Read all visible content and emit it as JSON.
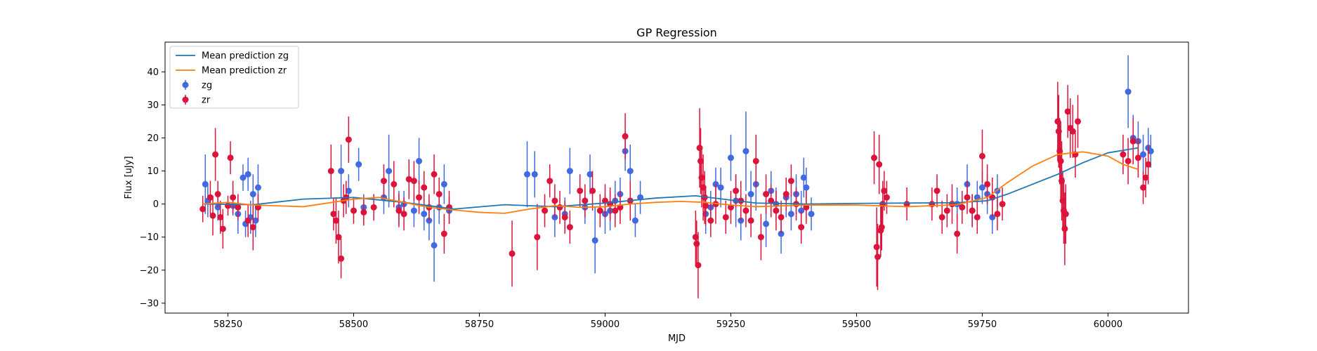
{
  "chart_data": {
    "type": "scatter",
    "title": "GP Regression",
    "xlabel": "MJD",
    "ylabel": "Flux [uJy]",
    "xlim": [
      58125,
      60160
    ],
    "ylim": [
      -33,
      49
    ],
    "xticks": [
      58250,
      58500,
      58750,
      59000,
      59250,
      59500,
      59750,
      60000
    ],
    "yticks": [
      -30,
      -20,
      -10,
      0,
      10,
      20,
      30,
      40
    ],
    "grid": false,
    "legend_position": "top-left",
    "colors": {
      "zg": "#4169e1",
      "zr": "#dc143c",
      "mean_zg": "#1f77b4",
      "mean_zr": "#ff7f0e"
    },
    "series": [
      {
        "name": "Mean prediction zg",
        "kind": "line",
        "x": [
          58200,
          58300,
          58400,
          58500,
          58600,
          58700,
          58800,
          58900,
          59000,
          59100,
          59180,
          59250,
          59300,
          59400,
          59500,
          59600,
          59700,
          59760,
          59800,
          59850,
          59900,
          59950,
          60000,
          60060
        ],
        "y": [
          0.0,
          -0.2,
          1.5,
          2.0,
          0.5,
          -1.5,
          -0.2,
          -0.8,
          0.3,
          1.8,
          2.5,
          1.2,
          0.3,
          0.0,
          0.2,
          0.3,
          0.4,
          1.0,
          3.0,
          6.0,
          9.0,
          12.5,
          15.5,
          17.0
        ]
      },
      {
        "name": "Mean prediction zr",
        "kind": "line",
        "x": [
          58200,
          58250,
          58300,
          58400,
          58500,
          58550,
          58600,
          58650,
          58700,
          58750,
          58800,
          58850,
          58900,
          58950,
          59000,
          59050,
          59100,
          59150,
          59200,
          59250,
          59300,
          59400,
          59500,
          59600,
          59700,
          59760,
          59800,
          59850,
          59900,
          59950,
          60000,
          60030,
          60060
        ],
        "y": [
          0.0,
          0.5,
          -0.3,
          -0.8,
          1.5,
          2.0,
          0.5,
          -1.0,
          -1.8,
          -2.5,
          -2.8,
          -1.5,
          -0.5,
          -1.0,
          -0.8,
          0.0,
          0.5,
          0.8,
          0.5,
          -0.3,
          -0.8,
          -0.3,
          -0.3,
          -0.8,
          -0.2,
          2.0,
          6.5,
          11.5,
          15.0,
          15.8,
          14.5,
          12.0,
          10.5
        ]
      },
      {
        "name": "zg",
        "kind": "errorbar",
        "points": [
          [
            58205,
            6,
            9
          ],
          [
            58210,
            1,
            5
          ],
          [
            58230,
            -1,
            4
          ],
          [
            58260,
            -0.5,
            3
          ],
          [
            58270,
            -3,
            6
          ],
          [
            58280,
            8,
            4
          ],
          [
            58285,
            -6,
            4
          ],
          [
            58290,
            9,
            5
          ],
          [
            58295,
            -4,
            5
          ],
          [
            58300,
            3,
            6
          ],
          [
            58305,
            -5,
            5
          ],
          [
            58310,
            5,
            7
          ],
          [
            58475,
            10,
            8
          ],
          [
            58490,
            4,
            5
          ],
          [
            58510,
            12,
            5
          ],
          [
            58520,
            -1,
            4
          ],
          [
            58560,
            2,
            5
          ],
          [
            58570,
            10,
            11
          ],
          [
            58590,
            -1,
            5
          ],
          [
            58600,
            0,
            4
          ],
          [
            58620,
            -2,
            5
          ],
          [
            58630,
            13,
            7
          ],
          [
            58640,
            -3,
            5
          ],
          [
            58650,
            -5,
            6
          ],
          [
            58660,
            -12.5,
            11
          ],
          [
            58670,
            -1,
            5
          ],
          [
            58680,
            6,
            6
          ],
          [
            58690,
            -2,
            4
          ],
          [
            58845,
            9,
            10
          ],
          [
            58860,
            9,
            7
          ],
          [
            58900,
            -4,
            6
          ],
          [
            58920,
            -3,
            5
          ],
          [
            58930,
            10,
            7
          ],
          [
            58960,
            -1,
            5
          ],
          [
            58970,
            9,
            6
          ],
          [
            58980,
            -11,
            10
          ],
          [
            59000,
            -3,
            6
          ],
          [
            59010,
            -2,
            6
          ],
          [
            59020,
            1,
            6
          ],
          [
            59030,
            3,
            5
          ],
          [
            59040,
            16,
            6
          ],
          [
            59050,
            10,
            8
          ],
          [
            59060,
            -5,
            5
          ],
          [
            59070,
            2,
            5
          ],
          [
            59200,
            -3,
            6
          ],
          [
            59210,
            -1,
            5
          ],
          [
            59220,
            6,
            5
          ],
          [
            59230,
            5,
            6
          ],
          [
            59250,
            14,
            7
          ],
          [
            59260,
            1,
            8
          ],
          [
            59270,
            -5,
            6
          ],
          [
            59280,
            16,
            12
          ],
          [
            59290,
            3,
            7
          ],
          [
            59300,
            6,
            8
          ],
          [
            59320,
            -6,
            7
          ],
          [
            59330,
            4,
            6
          ],
          [
            59340,
            0,
            5
          ],
          [
            59350,
            -9,
            6
          ],
          [
            59360,
            2,
            6
          ],
          [
            59370,
            -3,
            5
          ],
          [
            59380,
            3,
            6
          ],
          [
            59390,
            -2,
            6
          ],
          [
            59395,
            8,
            6
          ],
          [
            59400,
            5,
            6
          ],
          [
            59410,
            -3,
            5
          ],
          [
            59700,
            0,
            5
          ],
          [
            59720,
            6,
            6
          ],
          [
            59730,
            -2,
            5
          ],
          [
            59740,
            2,
            5
          ],
          [
            59750,
            5,
            5
          ],
          [
            59760,
            3,
            6
          ],
          [
            59770,
            -4,
            5
          ],
          [
            59780,
            4,
            5
          ],
          [
            60040,
            34,
            11
          ],
          [
            60050,
            20,
            7
          ],
          [
            60060,
            19,
            6
          ],
          [
            60070,
            15,
            6
          ],
          [
            60080,
            17,
            6
          ],
          [
            60085,
            16,
            5
          ]
        ]
      },
      {
        "name": "zr",
        "kind": "errorbar",
        "points": [
          [
            58200,
            -1.5,
            4
          ],
          [
            58215,
            2,
            5
          ],
          [
            58220,
            -3.5,
            6
          ],
          [
            58225,
            15,
            8
          ],
          [
            58230,
            3,
            4
          ],
          [
            58235,
            -4,
            5
          ],
          [
            58240,
            -7.5,
            6
          ],
          [
            58250,
            -0.5,
            3
          ],
          [
            58255,
            14,
            5
          ],
          [
            58260,
            2,
            5
          ],
          [
            58270,
            -1,
            4
          ],
          [
            58290,
            -5,
            5
          ],
          [
            58300,
            -7,
            7
          ],
          [
            58310,
            -1,
            4
          ],
          [
            58455,
            10,
            8
          ],
          [
            58460,
            -3,
            5
          ],
          [
            58465,
            -5,
            7
          ],
          [
            58470,
            -10,
            8
          ],
          [
            58475,
            -16.5,
            6
          ],
          [
            58480,
            1,
            5
          ],
          [
            58485,
            2,
            5
          ],
          [
            58490,
            19.5,
            7
          ],
          [
            58500,
            -2,
            4
          ],
          [
            58520,
            -2.5,
            4
          ],
          [
            58540,
            -1,
            4
          ],
          [
            58560,
            7,
            5
          ],
          [
            58580,
            6,
            7
          ],
          [
            58590,
            -2,
            5
          ],
          [
            58600,
            -3,
            5
          ],
          [
            58610,
            7.5,
            6
          ],
          [
            58620,
            7,
            6
          ],
          [
            58630,
            2,
            5
          ],
          [
            58640,
            5,
            5
          ],
          [
            58650,
            -1,
            4
          ],
          [
            58660,
            9,
            6
          ],
          [
            58670,
            3,
            5
          ],
          [
            58680,
            -9,
            6
          ],
          [
            58690,
            -1,
            5
          ],
          [
            58815,
            -15,
            10
          ],
          [
            58865,
            -10,
            10
          ],
          [
            58880,
            -2,
            5
          ],
          [
            58890,
            7,
            5
          ],
          [
            58900,
            1,
            5
          ],
          [
            58910,
            -1,
            5
          ],
          [
            58920,
            -4,
            5
          ],
          [
            58930,
            -7,
            5
          ],
          [
            58950,
            4,
            5
          ],
          [
            58960,
            1,
            5
          ],
          [
            58975,
            4,
            6
          ],
          [
            58990,
            -2,
            5
          ],
          [
            59000,
            1,
            5
          ],
          [
            59010,
            0,
            5
          ],
          [
            59020,
            -2,
            5
          ],
          [
            59030,
            -1,
            5
          ],
          [
            59040,
            20.5,
            7
          ],
          [
            59050,
            1,
            6
          ],
          [
            59180,
            -10,
            8
          ],
          [
            59182,
            -12,
            7
          ],
          [
            59185,
            -18.5,
            10
          ],
          [
            59188,
            17,
            12
          ],
          [
            59190,
            13,
            10
          ],
          [
            59192,
            8,
            9
          ],
          [
            59195,
            5,
            10
          ],
          [
            59198,
            2,
            8
          ],
          [
            59200,
            -0.5,
            6
          ],
          [
            59210,
            -5,
            5
          ],
          [
            59220,
            0,
            6
          ],
          [
            59240,
            -4,
            5
          ],
          [
            59250,
            -1,
            5
          ],
          [
            59260,
            4,
            5
          ],
          [
            59270,
            1,
            6
          ],
          [
            59280,
            -2,
            5
          ],
          [
            59290,
            -5,
            5
          ],
          [
            59300,
            13,
            8
          ],
          [
            59310,
            -10,
            7
          ],
          [
            59320,
            3,
            6
          ],
          [
            59330,
            1,
            5
          ],
          [
            59340,
            -2,
            6
          ],
          [
            59350,
            -4,
            5
          ],
          [
            59360,
            3,
            5
          ],
          [
            59370,
            7,
            5
          ],
          [
            59380,
            0,
            5
          ],
          [
            59390,
            -7,
            5
          ],
          [
            59400,
            -1,
            5
          ],
          [
            59535,
            14,
            8
          ],
          [
            59540,
            -13,
            12
          ],
          [
            59542,
            -16,
            10
          ],
          [
            59545,
            12,
            9
          ],
          [
            59548,
            -8,
            8
          ],
          [
            59550,
            -7,
            7
          ],
          [
            59552,
            0,
            7
          ],
          [
            59555,
            4,
            6
          ],
          [
            59560,
            2,
            5
          ],
          [
            59600,
            0,
            5
          ],
          [
            59650,
            0,
            5
          ],
          [
            59660,
            4,
            5
          ],
          [
            59670,
            -4,
            5
          ],
          [
            59680,
            -2,
            5
          ],
          [
            59690,
            0,
            6
          ],
          [
            59700,
            -9,
            6
          ],
          [
            59710,
            -1,
            5
          ],
          [
            59720,
            2,
            5
          ],
          [
            59730,
            -2,
            5
          ],
          [
            59740,
            -4,
            5
          ],
          [
            59750,
            14.5,
            8
          ],
          [
            59760,
            6,
            6
          ],
          [
            59770,
            2,
            6
          ],
          [
            59780,
            -3,
            5
          ],
          [
            59790,
            0,
            5
          ],
          [
            59900,
            25,
            12
          ],
          [
            59902,
            22,
            11
          ],
          [
            59904,
            16,
            10
          ],
          [
            59906,
            13,
            12
          ],
          [
            59908,
            7,
            12
          ],
          [
            59910,
            1,
            9
          ],
          [
            59912,
            -2,
            10
          ],
          [
            59914,
            -7.5,
            11
          ],
          [
            59916,
            -3,
            9
          ],
          [
            59920,
            28,
            8
          ],
          [
            59925,
            23,
            9
          ],
          [
            59930,
            22,
            8
          ],
          [
            59935,
            15,
            7
          ],
          [
            59940,
            25,
            8
          ],
          [
            60030,
            15,
            6
          ],
          [
            60040,
            13,
            7
          ],
          [
            60050,
            19,
            7
          ],
          [
            60060,
            14,
            6
          ],
          [
            60070,
            5,
            5
          ],
          [
            60075,
            8,
            6
          ],
          [
            60080,
            12,
            6
          ]
        ]
      }
    ]
  }
}
